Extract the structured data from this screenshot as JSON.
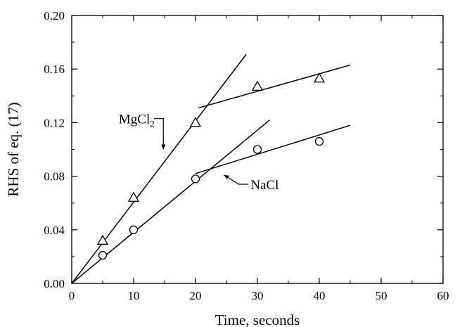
{
  "chart_data": {
    "type": "scatter",
    "xlabel": "Time, seconds",
    "ylabel": "RHS of eq. (17)",
    "xlim": [
      0,
      60
    ],
    "ylim": [
      0,
      0.2
    ],
    "x_ticks": [
      0,
      10,
      20,
      30,
      40,
      50,
      60
    ],
    "y_ticks": [
      0.0,
      0.04,
      0.08,
      0.12,
      0.16,
      0.2
    ],
    "x_tick_labels": [
      "0",
      "10",
      "20",
      "30",
      "40",
      "50",
      "60"
    ],
    "y_tick_labels": [
      "0.00",
      "0.04",
      "0.08",
      "0.12",
      "0.16",
      "0.20"
    ],
    "grid": false,
    "series": [
      {
        "name": "MgCl2",
        "marker": "triangle",
        "x": [
          5,
          10,
          20,
          30,
          40
        ],
        "y": [
          0.032,
          0.064,
          0.12,
          0.147,
          0.153
        ],
        "fit_lines": [
          {
            "x": [
              0,
              28.2
            ],
            "y": [
              0.0,
              0.171
            ]
          },
          {
            "x": [
              20.5,
              45
            ],
            "y": [
              0.131,
              0.163
            ]
          }
        ]
      },
      {
        "name": "NaCl",
        "marker": "circle",
        "x": [
          5,
          10,
          20,
          30,
          40
        ],
        "y": [
          0.021,
          0.04,
          0.078,
          0.1,
          0.106
        ],
        "fit_lines": [
          {
            "x": [
              0,
              32
            ],
            "y": [
              0.0,
              0.122
            ]
          },
          {
            "x": [
              20,
              45
            ],
            "y": [
              0.082,
              0.118
            ]
          }
        ]
      }
    ],
    "annotations": [
      {
        "series": "MgCl2",
        "text_main": "MgCl",
        "text_sub": "2",
        "label_at": [
          7.6,
          0.123
        ],
        "arrow_path": [
          [
            13.3,
            0.123
          ],
          [
            14.8,
            0.123
          ],
          [
            14.8,
            0.1
          ]
        ]
      },
      {
        "series": "NaCl",
        "text_main": "NaCl",
        "text_sub": "",
        "label_at": [
          28.9,
          0.074
        ],
        "arrow_path": [
          [
            28.5,
            0.074
          ],
          [
            27.0,
            0.074
          ],
          [
            24.6,
            0.081
          ]
        ]
      }
    ]
  }
}
